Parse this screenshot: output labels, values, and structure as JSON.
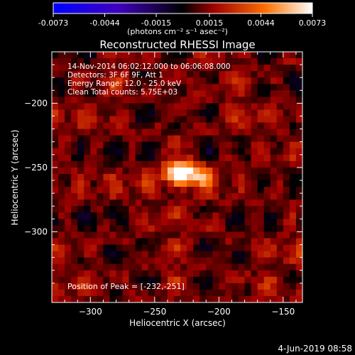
{
  "colorbar": {
    "tick_labels": [
      "-0.0073",
      "-0.0044",
      "-0.0015",
      "0.0015",
      "0.0044",
      "0.0073"
    ],
    "range": [
      -0.0073,
      0.0073
    ],
    "units_label": "(photons cm⁻² s⁻¹ asec⁻²)",
    "colors": {
      "negative_end": "#0000ff",
      "mid": "#000000",
      "low_pos": "#800000",
      "high_pos": "#ff8000",
      "peak": "#ffffff"
    }
  },
  "header": {
    "info_lines": [
      "14-Nov-2014 06:02:12.000 to 06:06:08.000",
      "Detectors: 3F 6F 9F, Att 1",
      "Energy Range: 12.0 - 25.0 keV",
      "Clean    Total counts: 5.75E+03"
    ],
    "peak_text": "Position of Peak = [-232,-251]"
  },
  "footer": {
    "date": "4-Jun-2019 08:58"
  },
  "chart_data": {
    "type": "heatmap",
    "title": "Reconstructed RHESSI Image",
    "xlabel": "Heliocentric X (arcsec)",
    "ylabel": "Heliocentric Y (arcsec)",
    "xlim": [
      -330,
      -135
    ],
    "ylim": [
      -355,
      -160
    ],
    "x_ticks": [
      -300,
      -250,
      -200,
      -150
    ],
    "y_ticks": [
      -200,
      -250,
      -300
    ],
    "x_tick_labels": [
      "−300",
      "−250",
      "−200",
      "−150"
    ],
    "y_tick_labels": [
      "−200",
      "−250",
      "−300"
    ],
    "peak": {
      "x": -232,
      "y": -251,
      "value": 0.0073
    },
    "secondary_source": {
      "x": -215,
      "y": -255
    },
    "value_range": [
      -0.0073,
      0.0073
    ],
    "grid": false
  }
}
